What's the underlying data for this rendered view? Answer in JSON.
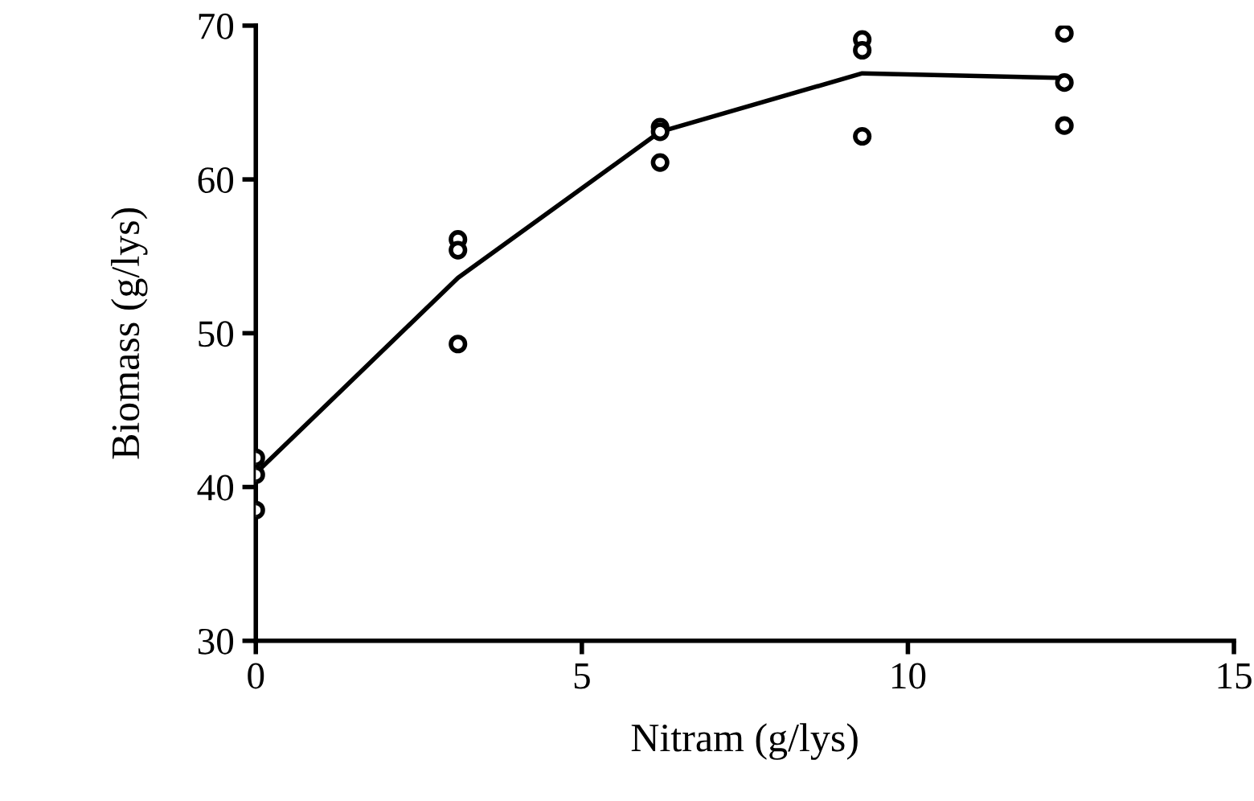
{
  "chart_data": {
    "type": "scatter",
    "xlabel": "Nitram (g/lys)",
    "ylabel": "Biomass (g/lys)",
    "series": [
      {
        "color": "#000000",
        "marker": "circle",
        "x": [
          0,
          0,
          0,
          3.1,
          3.1,
          3.1,
          6.2,
          6.2,
          6.2,
          9.3,
          9.3,
          9.3,
          12.4,
          12.4,
          12.4
        ],
        "values": [
          41.9,
          40.8,
          38.5,
          56.1,
          55.4,
          49.3,
          63.4,
          63.1,
          61.1,
          69.1,
          68.4,
          62.8,
          69.5,
          66.3,
          63.5
        ]
      },
      {
        "type": "line",
        "color": "#000000",
        "marker": "none",
        "line_style": "solid",
        "x": [
          0,
          3.1,
          6.2,
          9.3,
          12.4
        ],
        "values": [
          40.9,
          53.6,
          63.1,
          66.9,
          66.6
        ]
      }
    ],
    "xlim": [
      0,
      15
    ],
    "xticks": [
      0,
      5,
      10,
      15
    ],
    "ylim": [
      30,
      70
    ],
    "yticks": [
      30,
      40,
      50,
      60,
      70
    ],
    "grid": false,
    "legend": false
  }
}
